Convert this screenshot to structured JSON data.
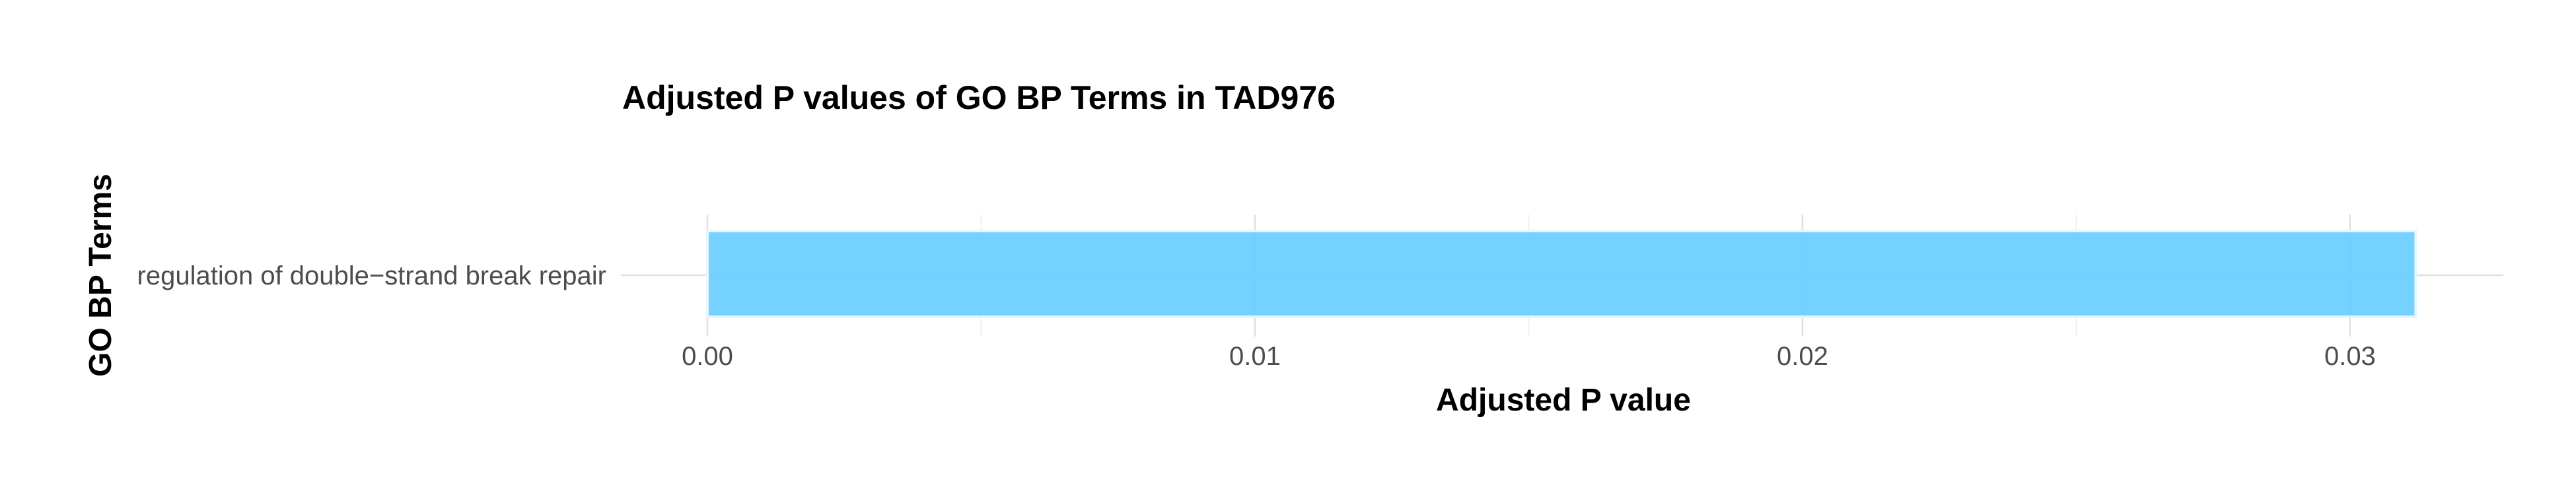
{
  "chart_data": {
    "type": "bar",
    "orientation": "horizontal",
    "title": "Adjusted P values of GO BP Terms in TAD976",
    "xlabel": "Adjusted P value",
    "ylabel": "GO BP Terms",
    "categories": [
      "regulation of double−strand break repair"
    ],
    "values": [
      0.0312
    ],
    "xlim": [
      0,
      0.0328
    ],
    "xticks": [
      0.0,
      0.01,
      0.02,
      0.03
    ],
    "xtick_labels": [
      "0.00",
      "0.01",
      "0.02",
      "0.03"
    ],
    "grid": true,
    "legend": "none",
    "bar_color": "#66ccff"
  }
}
